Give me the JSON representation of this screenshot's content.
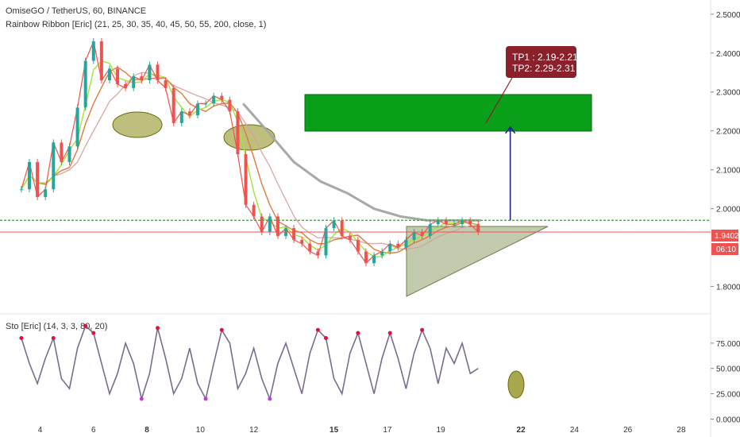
{
  "header": {
    "symbol_line": "OmiseGO / TetherUS, 60, BINANCE",
    "indicator_line": "Rainbow Ribbon [Eric] (21, 25, 30, 35, 40, 45, 50, 55, 200, close, 1)"
  },
  "oscillator": {
    "label": "Sto [Eric] (14, 3, 3, 80, 20)"
  },
  "annotation": {
    "line1": "TP1 : 2.19-2.21",
    "line2": "TP2: 2.29-2.31"
  },
  "price_tags": {
    "last_price": "1.9402",
    "countdown": "06:10"
  },
  "colors": {
    "background": "#ffffff",
    "candle_up": "#26a69a",
    "candle_down": "#ef5350",
    "target_box": "#0a9f18",
    "triangle_fill": "#8fa06a",
    "ellipse_fill": "#8a8a12",
    "ma200": "#a8a8a8",
    "support_line": "#19c819",
    "target_arrow": "#1d1d9e",
    "annotation_bg": "#8b1f2a",
    "price_tag_bg": "#ef5350"
  },
  "chart_data": [
    {
      "type": "line",
      "title": "OmiseGO / TetherUS, 60, BINANCE",
      "xlabel": "",
      "ylabel": "",
      "x_ticks": [
        "4",
        "6",
        "8",
        "10",
        "12",
        "15",
        "17",
        "19",
        "22",
        "24",
        "26",
        "28"
      ],
      "y_ticks": [
        "2.5000",
        "2.4000",
        "2.3000",
        "2.2000",
        "2.1000",
        "2.0000",
        "1.8000"
      ],
      "ylim": [
        1.74,
        2.52
      ],
      "xlim": [
        2.5,
        29.1
      ],
      "grid": false,
      "series": [
        {
          "name": "",
          "x": [
            3.3,
            3.6,
            3.9,
            4.2,
            4.5,
            4.8,
            5.1,
            5.4,
            5.7,
            6.0,
            6.3,
            6.6,
            6.9,
            7.2,
            7.5,
            7.8,
            8.1,
            8.4,
            8.7,
            9.0,
            9.3,
            9.6,
            9.9,
            10.2,
            10.5,
            10.8,
            11.1,
            11.4,
            11.7,
            12.0,
            12.3,
            12.6,
            12.9,
            13.2,
            13.5,
            13.8,
            14.1,
            14.4,
            14.7,
            15.0,
            15.3,
            15.6,
            15.9,
            16.2,
            16.5,
            16.8,
            17.1,
            17.4,
            17.7,
            18.0,
            18.3,
            18.6,
            18.9,
            19.2,
            19.5,
            19.8,
            20.1,
            20.4
          ],
          "values": [
            2.05,
            2.12,
            2.03,
            2.05,
            2.17,
            2.12,
            2.16,
            2.26,
            2.38,
            2.43,
            2.33,
            2.36,
            2.32,
            2.31,
            2.34,
            2.33,
            2.37,
            2.33,
            2.31,
            2.22,
            2.25,
            2.24,
            2.27,
            2.27,
            2.29,
            2.28,
            2.25,
            2.14,
            2.01,
            1.98,
            1.94,
            1.98,
            1.93,
            1.95,
            1.92,
            1.91,
            1.89,
            1.88,
            1.95,
            1.97,
            1.93,
            1.92,
            1.89,
            1.86,
            1.88,
            1.89,
            1.91,
            1.9,
            1.92,
            1.94,
            1.93,
            1.96,
            1.97,
            1.96,
            1.96,
            1.97,
            1.96,
            1.94
          ]
        },
        {
          "name": "",
          "x": [
            11.6,
            12.5,
            13.5,
            14.5,
            15.5,
            16.5,
            17.5,
            18.5,
            19.5,
            20.5
          ],
          "values": [
            2.27,
            2.2,
            2.12,
            2.07,
            2.04,
            2.0,
            1.98,
            1.97,
            1.97,
            1.97
          ]
        }
      ],
      "annotations": [
        {
          "kind": "last_price",
          "value": 1.9402,
          "color": "#ef5350"
        },
        {
          "kind": "support",
          "value": 1.97,
          "color": "#19c819"
        },
        {
          "kind": "target_zone",
          "y_range": [
            2.21,
            2.3
          ],
          "x_range": [
            11.6,
            23.7
          ]
        },
        {
          "kind": "triangle",
          "points": [
            [
              16.0,
              1.97
            ],
            [
              21.5,
              1.97
            ],
            [
              16.0,
              1.79
            ]
          ]
        },
        {
          "kind": "ellipse",
          "x": 5.0,
          "y": 2.21
        },
        {
          "kind": "ellipse",
          "x": 9.2,
          "y": 2.18
        },
        {
          "kind": "arrow",
          "x": 21.6,
          "from": 1.97,
          "to": 2.21
        }
      ]
    },
    {
      "type": "line",
      "title": "Sto [Eric] (14, 3, 3, 80, 20)",
      "y_ticks": [
        "75.0000",
        "50.0000",
        "25.0000",
        "0.0000"
      ],
      "ylim": [
        -2,
        100
      ],
      "xlim": [
        2.5,
        29.1
      ],
      "series": [
        {
          "name": "",
          "x": [
            3.3,
            3.6,
            3.9,
            4.2,
            4.5,
            4.8,
            5.1,
            5.4,
            5.7,
            6.0,
            6.3,
            6.6,
            6.9,
            7.2,
            7.5,
            7.8,
            8.1,
            8.4,
            8.7,
            9.0,
            9.3,
            9.6,
            9.9,
            10.2,
            10.5,
            10.8,
            11.1,
            11.4,
            11.7,
            12.0,
            12.3,
            12.6,
            12.9,
            13.2,
            13.5,
            13.8,
            14.1,
            14.4,
            14.7,
            15.0,
            15.3,
            15.6,
            15.9,
            16.2,
            16.5,
            16.8,
            17.1,
            17.4,
            17.7,
            18.0,
            18.3,
            18.6,
            18.9,
            19.2,
            19.5,
            19.8,
            20.1,
            20.4
          ],
          "values": [
            80,
            55,
            35,
            60,
            80,
            40,
            30,
            70,
            92,
            85,
            55,
            25,
            45,
            75,
            55,
            20,
            45,
            90,
            60,
            25,
            40,
            70,
            35,
            20,
            55,
            88,
            75,
            30,
            45,
            70,
            40,
            20,
            55,
            75,
            50,
            25,
            65,
            88,
            80,
            40,
            25,
            65,
            85,
            55,
            25,
            60,
            85,
            60,
            30,
            65,
            88,
            70,
            35,
            70,
            55,
            75,
            45,
            50
          ]
        }
      ]
    }
  ]
}
